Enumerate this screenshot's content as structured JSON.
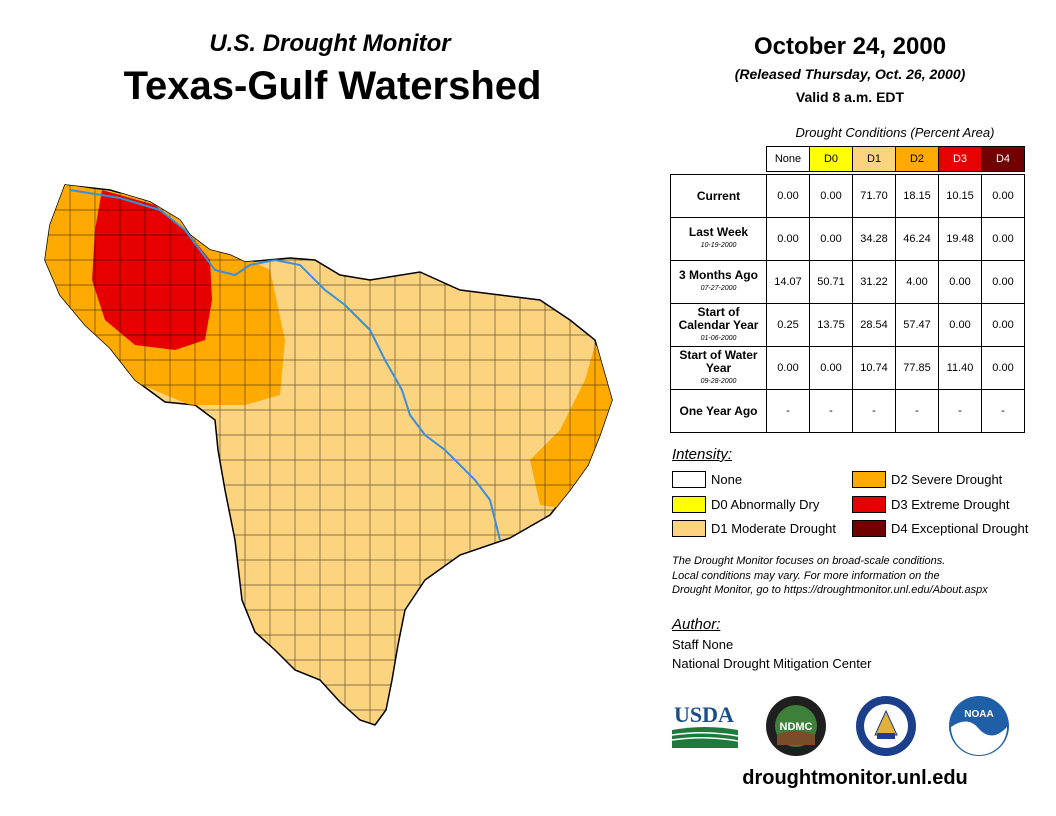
{
  "header": {
    "subtitle": "U.S. Drought Monitor",
    "title": "Texas-Gulf Watershed",
    "date": "October 24, 2000",
    "released": "(Released Thursday, Oct. 26, 2000)",
    "valid": "Valid 8 a.m. EDT"
  },
  "table": {
    "caption": "Drought Conditions (Percent Area)",
    "columns": [
      "None",
      "D0",
      "D1",
      "D2",
      "D3",
      "D4"
    ],
    "rows": [
      {
        "label": "Current",
        "date": "",
        "values": [
          "0.00",
          "0.00",
          "71.70",
          "18.15",
          "10.15",
          "0.00"
        ]
      },
      {
        "label": "Last Week",
        "date": "10-19-2000",
        "values": [
          "0.00",
          "0.00",
          "34.28",
          "46.24",
          "19.48",
          "0.00"
        ]
      },
      {
        "label": "3 Months Ago",
        "date": "07-27-2000",
        "values": [
          "14.07",
          "50.71",
          "31.22",
          "4.00",
          "0.00",
          "0.00"
        ]
      },
      {
        "label": "Start of Calendar Year",
        "date": "01-06-2000",
        "values": [
          "0.25",
          "13.75",
          "28.54",
          "57.47",
          "0.00",
          "0.00"
        ]
      },
      {
        "label": "Start of Water Year",
        "date": "09-28-2000",
        "values": [
          "0.00",
          "0.00",
          "10.74",
          "77.85",
          "11.40",
          "0.00"
        ]
      },
      {
        "label": "One Year Ago",
        "date": "",
        "values": [
          "-",
          "-",
          "-",
          "-",
          "-",
          "-"
        ]
      }
    ]
  },
  "legend": {
    "title": "Intensity:",
    "items": [
      {
        "label": "None",
        "color": "#ffffff"
      },
      {
        "label": "D0 Abnormally Dry",
        "color": "#ffff00"
      },
      {
        "label": "D1 Moderate Drought",
        "color": "#fcd37f"
      },
      {
        "label": "D2 Severe Drought",
        "color": "#ffaa00"
      },
      {
        "label": "D3 Extreme Drought",
        "color": "#e60000"
      },
      {
        "label": "D4 Exceptional Drought",
        "color": "#730000"
      }
    ]
  },
  "note": {
    "line1": "The Drought Monitor focuses on broad-scale conditions.",
    "line2": "Local conditions may vary. For more information on the",
    "line3": "Drought Monitor, go to https://droughtmonitor.unl.edu/About.aspx"
  },
  "author": {
    "title": "Author:",
    "name": "Staff None",
    "org": "National Drought Mitigation Center"
  },
  "logos": {
    "usda": "USDA",
    "ndmc": "NDMC",
    "noaa": "NOAA"
  },
  "website": "droughtmonitor.unl.edu",
  "colors": {
    "d1": "#fcd37f",
    "d2": "#ffaa00",
    "d3": "#e60000",
    "river": "#3b8fd9"
  }
}
